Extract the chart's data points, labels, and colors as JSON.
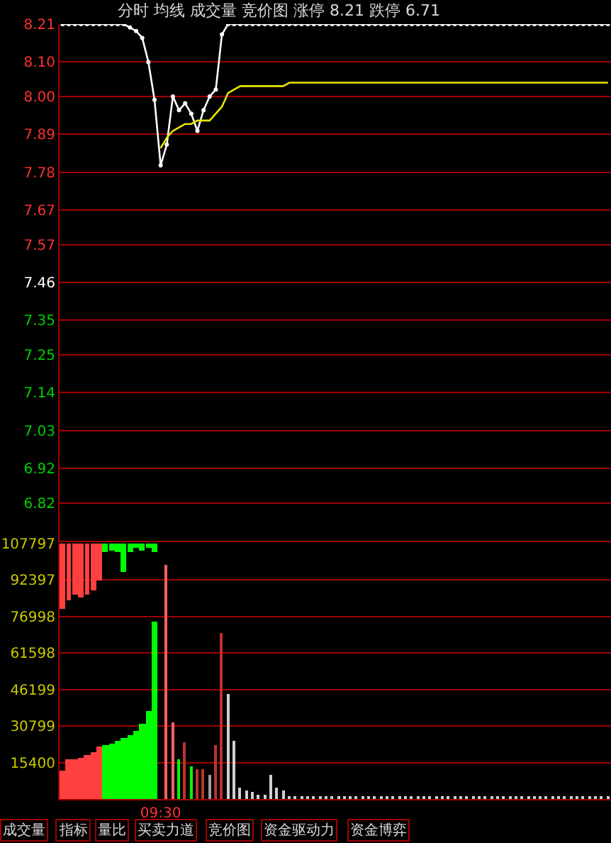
{
  "chart_data": [
    {
      "type": "line",
      "title": "分时 均线 成交量 竞价图 涨停 8.21 跌停 6.71",
      "categories": [
        null,
        null,
        null,
        null,
        null,
        null,
        null,
        null,
        null,
        null,
        null,
        null,
        null,
        null,
        null,
        null,
        null,
        null,
        null,
        null,
        null,
        null,
        null,
        null,
        null,
        null,
        null,
        null,
        null,
        null,
        null,
        null,
        null,
        null,
        null,
        null,
        null,
        null,
        null,
        null,
        null,
        null,
        null,
        null,
        null,
        null,
        null,
        null,
        null,
        null,
        null,
        null,
        null,
        null,
        null,
        null,
        null,
        null,
        null,
        null,
        null,
        null,
        null,
        null,
        null,
        null,
        null,
        null,
        null,
        null,
        null,
        null,
        null,
        null,
        null,
        null,
        null,
        null,
        null,
        null,
        null,
        null,
        null,
        null,
        null,
        null,
        null,
        null,
        null,
        null
      ],
      "series": [
        {
          "color": "#ffffff",
          "marker": "circle",
          "values": [
            8.21,
            8.21,
            8.21,
            8.21,
            8.21,
            8.21,
            8.21,
            8.21,
            8.21,
            8.21,
            8.21,
            8.2,
            8.19,
            8.17,
            8.1,
            7.99,
            7.8,
            7.86,
            8.0,
            7.96,
            7.98,
            7.95,
            7.9,
            7.96,
            8.0,
            8.02,
            8.18,
            8.21,
            8.21,
            8.21,
            8.21,
            8.21,
            8.21,
            8.21,
            8.21,
            8.21,
            8.21,
            8.21,
            8.21,
            8.21,
            8.21,
            8.21,
            8.21,
            8.21,
            8.21,
            8.21,
            8.21,
            8.21,
            8.21,
            8.21,
            8.21,
            8.21,
            8.21,
            8.21,
            8.21,
            8.21,
            8.21,
            8.21,
            8.21,
            8.21,
            8.21,
            8.21,
            8.21,
            8.21,
            8.21,
            8.21,
            8.21,
            8.21,
            8.21,
            8.21,
            8.21,
            8.21,
            8.21,
            8.21,
            8.21,
            8.21,
            8.21,
            8.21,
            8.21,
            8.21,
            8.21,
            8.21,
            8.21,
            8.21,
            8.21,
            8.21,
            8.21,
            8.21,
            8.21,
            8.21
          ]
        },
        {
          "color": "#e6e600",
          "values": [
            null,
            null,
            null,
            null,
            null,
            null,
            null,
            null,
            null,
            null,
            null,
            null,
            null,
            null,
            null,
            null,
            7.85,
            7.88,
            7.9,
            7.91,
            7.92,
            7.92,
            7.93,
            7.93,
            7.93,
            7.95,
            7.97,
            8.01,
            8.02,
            8.03,
            8.03,
            8.03,
            8.03,
            8.03,
            8.03,
            8.03,
            8.03,
            8.04,
            8.04,
            8.04,
            8.04,
            8.04,
            8.04,
            8.04,
            8.04,
            8.04,
            8.04,
            8.04,
            8.04,
            8.04,
            8.04,
            8.04,
            8.04,
            8.04,
            8.04,
            8.04,
            8.04,
            8.04,
            8.04,
            8.04,
            8.04,
            8.04,
            8.04,
            8.04,
            8.04,
            8.04,
            8.04,
            8.04,
            8.04,
            8.04,
            8.04,
            8.04,
            8.04,
            8.04,
            8.04,
            8.04,
            8.04,
            8.04,
            8.04,
            8.04,
            8.04,
            8.04,
            8.04,
            8.04,
            8.04,
            8.04,
            8.04,
            8.04,
            8.04,
            8.04
          ]
        }
      ],
      "ylim": [
        6.71,
        8.21
      ],
      "yticks": [
        8.21,
        {
          "value": 8.1,
          "label": "8.10"
        },
        {
          "value": 8,
          "label": "8.00"
        },
        7.89,
        7.78,
        7.67,
        7.57,
        7.46,
        7.35,
        7.25,
        7.14,
        7.03,
        6.92,
        6.82
      ],
      "grid": "y",
      "tick_labels": "y"
    },
    {
      "type": "bar",
      "categories": [
        null,
        null,
        null,
        null,
        null,
        null,
        null,
        null,
        null,
        null,
        null,
        null,
        null,
        null,
        null,
        null,
        "09:30",
        null,
        null,
        null,
        null,
        null,
        null,
        null,
        null,
        null,
        null,
        null,
        null,
        null,
        null,
        null,
        null,
        null,
        null,
        null,
        null,
        null,
        null,
        null,
        null,
        null,
        null,
        null,
        null,
        null,
        null,
        null,
        null,
        null,
        null,
        null,
        null,
        null,
        null,
        null,
        null,
        null,
        null,
        null,
        null,
        null,
        null,
        null,
        null,
        null,
        null,
        null,
        null,
        null,
        null,
        null,
        null,
        null,
        null,
        null,
        null,
        null,
        null,
        null,
        null,
        null,
        null,
        null,
        null,
        null,
        null,
        null,
        null,
        null
      ],
      "series": [
        {
          "colors": [
            "#ff4040",
            "#ff4040",
            "#ff4040",
            "#ff4040",
            "#ff4040",
            "#ff4040",
            "#ff4040",
            "#00ff00",
            "#00ff00",
            "#00ff00",
            "#00ff00",
            "#00ff00",
            "#00ff00",
            "#00ff00",
            "#00ff00",
            "#00ff00",
            null,
            null,
            null,
            null,
            null,
            null,
            null,
            null,
            null,
            null,
            null,
            null,
            null,
            null,
            null,
            null,
            null,
            null,
            null,
            null,
            null,
            null,
            null,
            null,
            null,
            null,
            null,
            null,
            null,
            null,
            null,
            null,
            null,
            null,
            null,
            null,
            null,
            null,
            null,
            null,
            null,
            null,
            null,
            null,
            null,
            null,
            null,
            null,
            null,
            null,
            null,
            null,
            null,
            null,
            null,
            null,
            null,
            null,
            null,
            null,
            null,
            null,
            null,
            null,
            null,
            null,
            null,
            null,
            null,
            null,
            null,
            null,
            null,
            null
          ],
          "values": [
            12000,
            16500,
            17000,
            17500,
            18500,
            19500,
            22000,
            23000,
            23500,
            24500,
            25500,
            27000,
            29000,
            32000,
            37000,
            75000,
            null,
            null,
            null,
            null,
            null,
            null,
            null,
            null,
            null,
            null,
            null,
            null,
            null,
            null,
            null,
            null,
            null,
            null,
            null,
            null,
            null,
            null,
            null,
            null,
            null,
            null,
            null,
            null,
            null,
            null,
            null,
            null,
            null,
            null,
            null,
            null,
            null,
            null,
            null,
            null,
            null,
            null,
            null,
            null,
            null,
            null,
            null,
            null,
            null,
            null,
            null,
            null,
            null,
            null,
            null,
            null,
            null,
            null,
            null,
            null,
            null,
            null,
            null,
            null,
            null,
            null,
            null,
            null,
            null,
            null,
            null,
            null,
            null,
            null
          ]
        },
        {
          "colors": [
            "#ff4040",
            "#ff4040",
            "#ff4040",
            "#ff4040",
            "#ff4040",
            "#ff4040",
            "#ff4040",
            "#00ff00",
            "#00ff00",
            "#00ff00",
            "#00ff00",
            "#00ff00",
            "#00ff00",
            "#00ff00",
            "#00ff00",
            "#00ff00",
            null,
            null,
            null,
            null,
            null,
            null,
            null,
            null,
            null,
            null,
            null,
            null,
            null,
            null,
            null,
            null,
            null,
            null,
            null,
            null,
            null,
            null,
            null,
            null,
            null,
            null,
            null,
            null,
            null,
            null,
            null,
            null,
            null,
            null,
            null,
            null,
            null,
            null,
            null,
            null,
            null,
            null,
            null,
            null,
            null,
            null,
            null,
            null,
            null,
            null,
            null,
            null,
            null,
            null,
            null,
            null,
            null,
            null,
            null,
            null,
            null,
            null,
            null,
            null,
            null,
            null,
            null,
            null,
            null,
            null,
            null,
            null,
            null,
            null
          ],
          "base": [
            80000,
            84000,
            86000,
            85000,
            86000,
            88000,
            92000,
            104000,
            105000,
            104000,
            96000,
            104000,
            106000,
            105000,
            106000,
            104000,
            null,
            null,
            null,
            null,
            null,
            null,
            null,
            null,
            null,
            null,
            null,
            null,
            null,
            null,
            null,
            null,
            null,
            null,
            null,
            null,
            null,
            null,
            null,
            null,
            null,
            null,
            null,
            null,
            null,
            null,
            null,
            null,
            null,
            null,
            null,
            null,
            null,
            null,
            null,
            null,
            null,
            null,
            null,
            null,
            null,
            null,
            null,
            null,
            null,
            null,
            null,
            null,
            null,
            null,
            null,
            null,
            null,
            null,
            null,
            null,
            null,
            null,
            null,
            null,
            null,
            null,
            null,
            null,
            null,
            null,
            null,
            null,
            null,
            null
          ],
          "values": [
            27797,
            23797,
            21797,
            22797,
            21797,
            19797,
            15797,
            3797,
            2797,
            3797,
            11797,
            3797,
            1797,
            2797,
            1797,
            3797,
            null,
            null,
            null,
            null,
            null,
            null,
            null,
            null,
            null,
            null,
            null,
            null,
            null,
            null,
            null,
            null,
            null,
            null,
            null,
            null,
            null,
            null,
            null,
            null,
            null,
            null,
            null,
            null,
            null,
            null,
            null,
            null,
            null,
            null,
            null,
            null,
            null,
            null,
            null,
            null,
            null,
            null,
            null,
            null,
            null,
            null,
            null,
            null,
            null,
            null,
            null,
            null,
            null,
            null,
            null,
            null,
            null,
            null,
            null,
            null,
            null,
            null,
            null,
            null,
            null,
            null,
            null,
            null,
            null,
            null,
            null,
            null,
            null,
            null
          ]
        },
        {
          "colors": [
            null,
            null,
            null,
            null,
            null,
            null,
            null,
            null,
            null,
            null,
            null,
            null,
            null,
            null,
            null,
            null,
            null,
            "#ff6060",
            "#ff6060",
            "#00ff00",
            "#c03030",
            "#00ff00",
            "#c03030",
            "#c03030",
            "#a0a0a0",
            "#c03030",
            "#c03030",
            "#d0d0d0",
            "#d0d0d0",
            "#d0d0d0",
            "#d0d0d0",
            "#d0d0d0",
            "#d0d0d0",
            "#d0d0d0",
            "#d0d0d0",
            "#d0d0d0",
            "#d0d0d0",
            "#d0d0d0",
            "#d0d0d0",
            "#d0d0d0",
            "#d0d0d0",
            "#d0d0d0",
            "#d0d0d0",
            "#d0d0d0",
            "#d0d0d0",
            "#d0d0d0",
            "#d0d0d0",
            "#d0d0d0",
            "#d0d0d0",
            "#d0d0d0",
            "#d0d0d0",
            "#d0d0d0",
            "#d0d0d0",
            "#d0d0d0",
            "#d0d0d0",
            "#d0d0d0",
            "#d0d0d0",
            "#d0d0d0",
            "#d0d0d0",
            "#d0d0d0",
            "#d0d0d0",
            "#d0d0d0",
            "#d0d0d0",
            "#d0d0d0",
            "#d0d0d0",
            "#d0d0d0",
            "#d0d0d0",
            "#d0d0d0",
            "#d0d0d0",
            "#d0d0d0",
            "#d0d0d0",
            "#d0d0d0",
            "#d0d0d0",
            "#d0d0d0",
            "#d0d0d0",
            "#d0d0d0",
            "#d0d0d0",
            "#d0d0d0",
            "#d0d0d0",
            "#d0d0d0",
            "#d0d0d0",
            "#d0d0d0",
            "#d0d0d0",
            "#d0d0d0",
            "#d0d0d0",
            "#d0d0d0",
            "#d0d0d0",
            "#d0d0d0",
            "#d0d0d0",
            "#d0d0d0"
          ],
          "values": [
            null,
            null,
            null,
            null,
            null,
            null,
            null,
            null,
            null,
            null,
            null,
            null,
            null,
            null,
            null,
            null,
            null,
            99100,
            32600,
            17000,
            24000,
            14000,
            12300,
            12300,
            10000,
            22500,
            69800,
            44600,
            24300,
            5000,
            3300,
            2700,
            2000,
            2000,
            10000,
            4500,
            3300,
            1500,
            1000,
            1000,
            1000,
            1000,
            1000,
            1000,
            1000,
            1000,
            1000,
            1000,
            1000,
            1000,
            1000,
            1000,
            1000,
            1000,
            1000,
            1000,
            1000,
            1000,
            1000,
            1000,
            1000,
            1000,
            1000,
            1000,
            1000,
            1000,
            1000,
            1000,
            1000,
            1000,
            1000,
            1000,
            1000,
            1000,
            1000,
            1000,
            1000,
            1000,
            1000,
            1000,
            1000,
            1000,
            1000,
            1000,
            1000,
            1000,
            1000,
            1000,
            1000,
            1000
          ]
        }
      ],
      "ylim": [
        0,
        107797
      ],
      "yticks": [
        15400,
        30799,
        46199,
        61598,
        76998,
        92397,
        107797
      ],
      "grid": "y",
      "annotations": [
        "成交量",
        "指标",
        "量比",
        "买卖力道",
        "竞价图",
        "资金驱动力",
        "资金博弈"
      ]
    }
  ]
}
